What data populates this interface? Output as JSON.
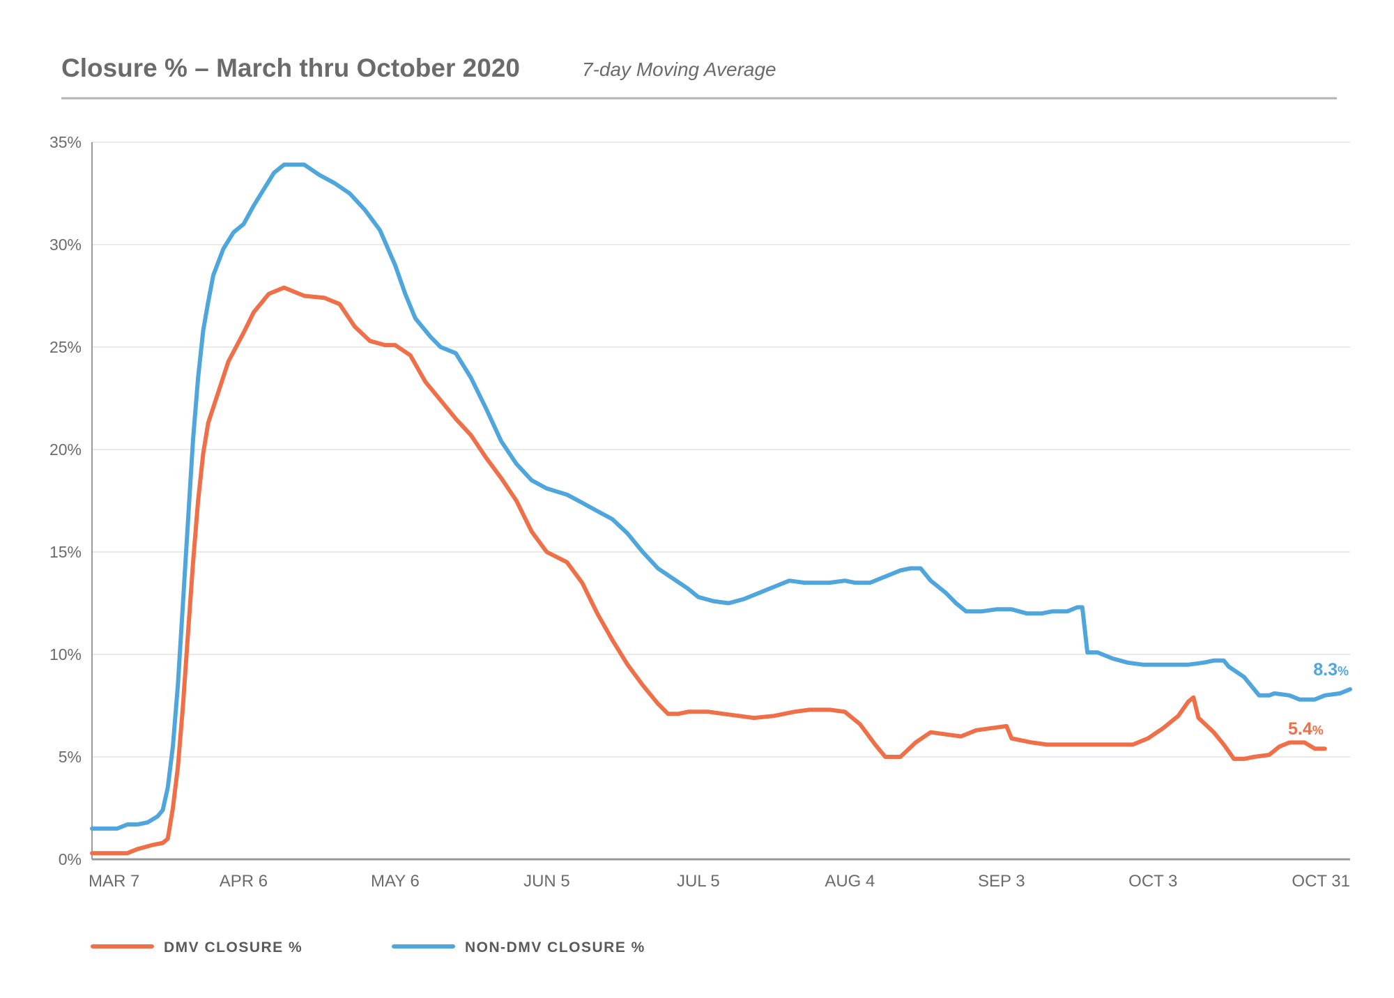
{
  "chart_data": {
    "type": "line",
    "title": "Closure % – March thru October 2020",
    "subtitle": "7-day Moving Average",
    "x_ticks": [
      "MAR 7",
      "APR 6",
      "MAY 6",
      "JUN 5",
      "JUL 5",
      "AUG 4",
      "SEP 3",
      "OCT 3",
      "OCT 31"
    ],
    "y_ticks": [
      "0%",
      "5%",
      "10%",
      "15%",
      "20%",
      "25%",
      "30%",
      "35%"
    ],
    "ylim": [
      0,
      35
    ],
    "xlim": [
      "2020-03-07",
      "2020-10-31"
    ],
    "grid": true,
    "legend_position": "bottom-left",
    "series": [
      {
        "name": "DMV CLOSURE %",
        "color": "#ef7048",
        "end_label": "5.4",
        "end_unit": "%",
        "points": [
          [
            "2020-03-07",
            0.3
          ],
          [
            "2020-03-14",
            0.3
          ],
          [
            "2020-03-16",
            0.5
          ],
          [
            "2020-03-19",
            0.7
          ],
          [
            "2020-03-21",
            0.8
          ],
          [
            "2020-03-22",
            1.0
          ],
          [
            "2020-03-23",
            2.5
          ],
          [
            "2020-03-24",
            4.5
          ],
          [
            "2020-03-25",
            7.5
          ],
          [
            "2020-03-26",
            11.0
          ],
          [
            "2020-03-27",
            14.5
          ],
          [
            "2020-03-28",
            17.5
          ],
          [
            "2020-03-29",
            19.8
          ],
          [
            "2020-03-30",
            21.3
          ],
          [
            "2020-04-01",
            22.8
          ],
          [
            "2020-04-03",
            24.3
          ],
          [
            "2020-04-06",
            25.7
          ],
          [
            "2020-04-08",
            26.7
          ],
          [
            "2020-04-11",
            27.6
          ],
          [
            "2020-04-14",
            27.9
          ],
          [
            "2020-04-16",
            27.7
          ],
          [
            "2020-04-18",
            27.5
          ],
          [
            "2020-04-22",
            27.4
          ],
          [
            "2020-04-25",
            27.1
          ],
          [
            "2020-04-28",
            26.0
          ],
          [
            "2020-05-01",
            25.3
          ],
          [
            "2020-05-04",
            25.1
          ],
          [
            "2020-05-06",
            25.1
          ],
          [
            "2020-05-09",
            24.6
          ],
          [
            "2020-05-12",
            23.3
          ],
          [
            "2020-05-15",
            22.4
          ],
          [
            "2020-05-18",
            21.5
          ],
          [
            "2020-05-21",
            20.7
          ],
          [
            "2020-05-24",
            19.6
          ],
          [
            "2020-05-27",
            18.6
          ],
          [
            "2020-05-30",
            17.5
          ],
          [
            "2020-06-02",
            16.0
          ],
          [
            "2020-06-05",
            15.0
          ],
          [
            "2020-06-09",
            14.5
          ],
          [
            "2020-06-12",
            13.5
          ],
          [
            "2020-06-15",
            12.0
          ],
          [
            "2020-06-18",
            10.7
          ],
          [
            "2020-06-21",
            9.5
          ],
          [
            "2020-06-24",
            8.5
          ],
          [
            "2020-06-27",
            7.6
          ],
          [
            "2020-06-29",
            7.1
          ],
          [
            "2020-07-01",
            7.1
          ],
          [
            "2020-07-03",
            7.2
          ],
          [
            "2020-07-07",
            7.2
          ],
          [
            "2020-07-10",
            7.1
          ],
          [
            "2020-07-13",
            7.0
          ],
          [
            "2020-07-16",
            6.9
          ],
          [
            "2020-07-20",
            7.0
          ],
          [
            "2020-07-24",
            7.2
          ],
          [
            "2020-07-27",
            7.3
          ],
          [
            "2020-07-31",
            7.3
          ],
          [
            "2020-08-03",
            7.2
          ],
          [
            "2020-08-06",
            6.6
          ],
          [
            "2020-08-09",
            5.6
          ],
          [
            "2020-08-11",
            5.0
          ],
          [
            "2020-08-14",
            5.0
          ],
          [
            "2020-08-17",
            5.7
          ],
          [
            "2020-08-20",
            6.2
          ],
          [
            "2020-08-23",
            6.1
          ],
          [
            "2020-08-26",
            6.0
          ],
          [
            "2020-08-29",
            6.3
          ],
          [
            "2020-09-01",
            6.4
          ],
          [
            "2020-09-04",
            6.5
          ],
          [
            "2020-09-05",
            5.9
          ],
          [
            "2020-09-09",
            5.7
          ],
          [
            "2020-09-12",
            5.6
          ],
          [
            "2020-09-29",
            5.6
          ],
          [
            "2020-10-02",
            5.9
          ],
          [
            "2020-10-05",
            6.4
          ],
          [
            "2020-10-08",
            7.0
          ],
          [
            "2020-10-10",
            7.7
          ],
          [
            "2020-10-11",
            7.9
          ],
          [
            "2020-10-12",
            6.9
          ],
          [
            "2020-10-15",
            6.2
          ],
          [
            "2020-10-17",
            5.6
          ],
          [
            "2020-10-19",
            4.9
          ],
          [
            "2020-10-21",
            4.9
          ],
          [
            "2020-10-23",
            5.0
          ],
          [
            "2020-10-26",
            5.1
          ],
          [
            "2020-10-28",
            5.5
          ],
          [
            "2020-10-30",
            5.7
          ],
          [
            "2020-11-02",
            5.7
          ],
          [
            "2020-11-04",
            5.4
          ],
          [
            "2020-11-06",
            5.4
          ]
        ]
      },
      {
        "name": "NON-DMV CLOSURE %",
        "color": "#4ea6dc",
        "end_label": "8.3",
        "end_unit": "%",
        "points": [
          [
            "2020-03-07",
            1.5
          ],
          [
            "2020-03-12",
            1.5
          ],
          [
            "2020-03-14",
            1.7
          ],
          [
            "2020-03-16",
            1.7
          ],
          [
            "2020-03-18",
            1.8
          ],
          [
            "2020-03-20",
            2.1
          ],
          [
            "2020-03-21",
            2.4
          ],
          [
            "2020-03-22",
            3.5
          ],
          [
            "2020-03-23",
            5.5
          ],
          [
            "2020-03-24",
            8.5
          ],
          [
            "2020-03-25",
            12.5
          ],
          [
            "2020-03-26",
            16.5
          ],
          [
            "2020-03-27",
            20.5
          ],
          [
            "2020-03-28",
            23.5
          ],
          [
            "2020-03-29",
            25.8
          ],
          [
            "2020-03-30",
            27.2
          ],
          [
            "2020-03-31",
            28.5
          ],
          [
            "2020-04-02",
            29.8
          ],
          [
            "2020-04-04",
            30.6
          ],
          [
            "2020-04-06",
            31.0
          ],
          [
            "2020-04-08",
            31.9
          ],
          [
            "2020-04-10",
            32.7
          ],
          [
            "2020-04-12",
            33.5
          ],
          [
            "2020-04-14",
            33.9
          ],
          [
            "2020-04-18",
            33.9
          ],
          [
            "2020-04-21",
            33.4
          ],
          [
            "2020-04-24",
            33.0
          ],
          [
            "2020-04-27",
            32.5
          ],
          [
            "2020-04-30",
            31.7
          ],
          [
            "2020-05-03",
            30.7
          ],
          [
            "2020-05-06",
            29.0
          ],
          [
            "2020-05-08",
            27.6
          ],
          [
            "2020-05-10",
            26.4
          ],
          [
            "2020-05-13",
            25.5
          ],
          [
            "2020-05-15",
            25.0
          ],
          [
            "2020-05-18",
            24.7
          ],
          [
            "2020-05-21",
            23.5
          ],
          [
            "2020-05-24",
            22.0
          ],
          [
            "2020-05-27",
            20.4
          ],
          [
            "2020-05-30",
            19.3
          ],
          [
            "2020-06-02",
            18.5
          ],
          [
            "2020-06-05",
            18.1
          ],
          [
            "2020-06-09",
            17.8
          ],
          [
            "2020-06-12",
            17.4
          ],
          [
            "2020-06-15",
            17.0
          ],
          [
            "2020-06-18",
            16.6
          ],
          [
            "2020-06-21",
            15.9
          ],
          [
            "2020-06-24",
            15.0
          ],
          [
            "2020-06-27",
            14.2
          ],
          [
            "2020-06-30",
            13.7
          ],
          [
            "2020-07-03",
            13.2
          ],
          [
            "2020-07-05",
            12.8
          ],
          [
            "2020-07-08",
            12.6
          ],
          [
            "2020-07-11",
            12.5
          ],
          [
            "2020-07-14",
            12.7
          ],
          [
            "2020-07-17",
            13.0
          ],
          [
            "2020-07-20",
            13.3
          ],
          [
            "2020-07-23",
            13.6
          ],
          [
            "2020-07-26",
            13.5
          ],
          [
            "2020-07-31",
            13.5
          ],
          [
            "2020-08-03",
            13.6
          ],
          [
            "2020-08-05",
            13.5
          ],
          [
            "2020-08-08",
            13.5
          ],
          [
            "2020-08-11",
            13.8
          ],
          [
            "2020-08-14",
            14.1
          ],
          [
            "2020-08-16",
            14.2
          ],
          [
            "2020-08-18",
            14.2
          ],
          [
            "2020-08-20",
            13.6
          ],
          [
            "2020-08-23",
            13.0
          ],
          [
            "2020-08-25",
            12.5
          ],
          [
            "2020-08-27",
            12.1
          ],
          [
            "2020-08-30",
            12.1
          ],
          [
            "2020-09-02",
            12.2
          ],
          [
            "2020-09-05",
            12.2
          ],
          [
            "2020-09-08",
            12.0
          ],
          [
            "2020-09-11",
            12.0
          ],
          [
            "2020-09-13",
            12.1
          ],
          [
            "2020-09-16",
            12.1
          ],
          [
            "2020-09-18",
            12.3
          ],
          [
            "2020-09-19",
            12.3
          ],
          [
            "2020-09-20",
            10.1
          ],
          [
            "2020-09-22",
            10.1
          ],
          [
            "2020-09-25",
            9.8
          ],
          [
            "2020-09-28",
            9.6
          ],
          [
            "2020-10-01",
            9.5
          ],
          [
            "2020-10-08",
            9.5
          ],
          [
            "2020-10-10",
            9.5
          ],
          [
            "2020-10-13",
            9.6
          ],
          [
            "2020-10-15",
            9.7
          ],
          [
            "2020-10-17",
            9.7
          ],
          [
            "2020-10-18",
            9.4
          ],
          [
            "2020-10-21",
            8.9
          ],
          [
            "2020-10-24",
            8.0
          ],
          [
            "2020-10-26",
            8.0
          ],
          [
            "2020-10-27",
            8.1
          ],
          [
            "2020-10-30",
            8.0
          ],
          [
            "2020-11-01",
            7.8
          ],
          [
            "2020-11-04",
            7.8
          ],
          [
            "2020-11-06",
            8.0
          ],
          [
            "2020-11-09",
            8.1
          ],
          [
            "2020-11-11",
            8.3
          ]
        ]
      }
    ]
  }
}
